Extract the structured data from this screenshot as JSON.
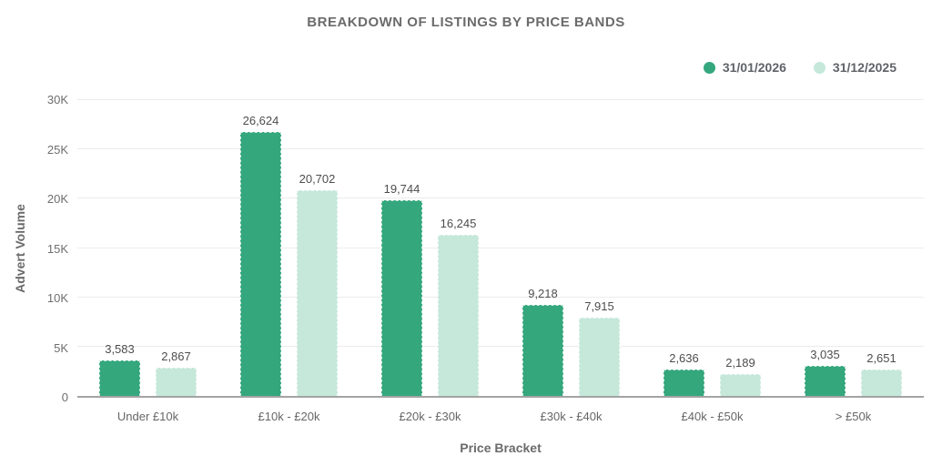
{
  "chart_data": {
    "type": "bar",
    "title": "BREAKDOWN OF LISTINGS BY PRICE BANDS",
    "xlabel": "Price Bracket",
    "ylabel": "Advert Volume",
    "categories": [
      "Under £10k",
      "£10k - £20k",
      "£20k - £30k",
      "£30k - £40k",
      "£40k - £50k",
      "> £50k"
    ],
    "series": [
      {
        "name": "31/01/2026",
        "color": "#34a77d",
        "values": [
          3583,
          26624,
          19744,
          9218,
          2636,
          3035
        ]
      },
      {
        "name": "31/12/2025",
        "color": "#c5e8da",
        "values": [
          2867,
          20702,
          16245,
          7915,
          2189,
          2651
        ]
      }
    ],
    "value_labels": [
      [
        "3,583",
        "26,624",
        "19,744",
        "9,218",
        "2,636",
        "3,035"
      ],
      [
        "2,867",
        "20,702",
        "16,245",
        "7,915",
        "2,189",
        "2,651"
      ]
    ],
    "ylim": [
      0,
      30000
    ],
    "yticks": [
      0,
      5000,
      10000,
      15000,
      20000,
      25000,
      30000
    ],
    "ytick_labels": [
      "0",
      "5K",
      "10K",
      "15K",
      "20K",
      "25K",
      "30K"
    ],
    "grid": "horizontal",
    "legend_position": "top-right"
  }
}
